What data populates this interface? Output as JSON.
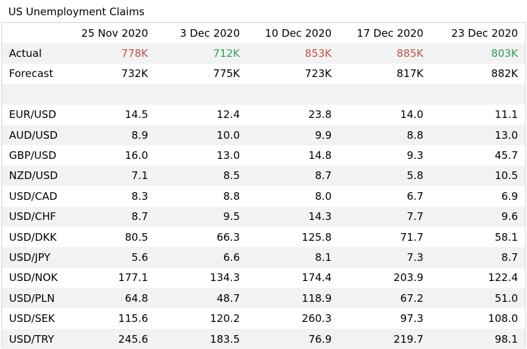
{
  "chart_data": {
    "type": "table",
    "title": "US Unemployment Claims",
    "columns": [
      "25 Nov 2020",
      "3 Dec 2020",
      "10 Dec 2020",
      "17 Dec 2020",
      "23 Dec 2020"
    ],
    "actual": {
      "label": "Actual",
      "values": [
        "778K",
        "712K",
        "853K",
        "885K",
        "803K"
      ],
      "status": [
        "worse",
        "better",
        "worse",
        "worse",
        "better"
      ]
    },
    "forecast": {
      "label": "Forecast",
      "values": [
        "732K",
        "775K",
        "723K",
        "817K",
        "882K"
      ]
    },
    "rows": [
      {
        "name": "EUR/USD",
        "values": [
          "14.5",
          "12.4",
          "23.8",
          "14.0",
          "11.1"
        ]
      },
      {
        "name": "AUD/USD",
        "values": [
          "8.9",
          "10.0",
          "9.9",
          "8.8",
          "13.0"
        ]
      },
      {
        "name": "GBP/USD",
        "values": [
          "16.0",
          "13.0",
          "14.8",
          "9.3",
          "45.7"
        ]
      },
      {
        "name": "NZD/USD",
        "values": [
          "7.1",
          "8.5",
          "8.7",
          "5.8",
          "10.5"
        ]
      },
      {
        "name": "USD/CAD",
        "values": [
          "8.3",
          "8.8",
          "8.0",
          "6.7",
          "6.9"
        ]
      },
      {
        "name": "USD/CHF",
        "values": [
          "8.7",
          "9.5",
          "14.3",
          "7.7",
          "9.6"
        ]
      },
      {
        "name": "USD/DKK",
        "values": [
          "80.5",
          "66.3",
          "125.8",
          "71.7",
          "58.1"
        ]
      },
      {
        "name": "USD/JPY",
        "values": [
          "5.6",
          "6.6",
          "8.1",
          "7.3",
          "8.7"
        ]
      },
      {
        "name": "USD/NOK",
        "values": [
          "177.1",
          "134.3",
          "174.4",
          "203.9",
          "122.4"
        ]
      },
      {
        "name": "USD/PLN",
        "values": [
          "64.8",
          "48.7",
          "118.9",
          "67.2",
          "51.0"
        ]
      },
      {
        "name": "USD/SEK",
        "values": [
          "115.6",
          "120.2",
          "260.3",
          "97.3",
          "108.0"
        ]
      },
      {
        "name": "USD/TRY",
        "values": [
          "245.6",
          "183.5",
          "76.9",
          "219.7",
          "98.1"
        ]
      }
    ]
  },
  "colors": {
    "worse": "#c0504d",
    "better": "#2e9e5e",
    "row_shade": "#f2f2f2",
    "border": "#d4d4d4"
  }
}
